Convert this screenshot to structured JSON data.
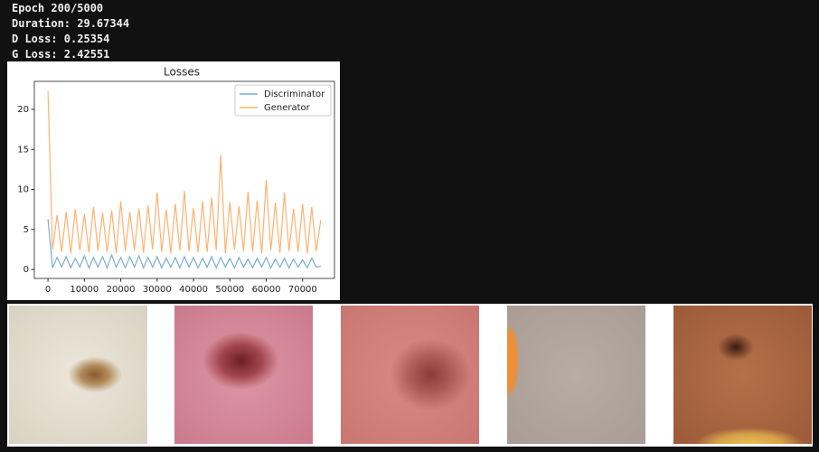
{
  "log_lines": [
    "Epoch 200/5000",
    "Duration: 29.67344",
    "D Loss: 0.25354",
    "G Loss: 2.42551"
  ],
  "chart_data": {
    "type": "line",
    "title": "Losses",
    "legend": "upper right",
    "x": [
      0,
      1250,
      2500,
      3750,
      5000,
      6250,
      7500,
      8750,
      10000,
      11250,
      12500,
      13750,
      15000,
      16250,
      17500,
      18750,
      20000,
      21250,
      22500,
      23750,
      25000,
      26250,
      27500,
      28750,
      30000,
      31250,
      32500,
      33750,
      35000,
      36250,
      37500,
      38750,
      40000,
      41250,
      42500,
      43750,
      45000,
      46250,
      47500,
      48750,
      50000,
      51250,
      52500,
      53750,
      55000,
      56250,
      57500,
      58750,
      60000,
      61250,
      62500,
      63750,
      65000,
      66250,
      67500,
      68750,
      70000,
      71250,
      72500,
      73750,
      75000
    ],
    "series": [
      {
        "name": "Discriminator",
        "color": "#1f77b4",
        "values": [
          6.3,
          0.2,
          1.5,
          0.3,
          1.6,
          0.2,
          1.4,
          0.3,
          1.7,
          0.2,
          1.5,
          0.3,
          1.6,
          0.2,
          1.8,
          0.3,
          1.5,
          0.2,
          1.6,
          0.3,
          1.7,
          0.2,
          1.5,
          0.3,
          1.6,
          0.2,
          1.4,
          0.3,
          1.5,
          0.2,
          1.6,
          0.3,
          1.5,
          0.2,
          1.4,
          0.3,
          1.6,
          0.2,
          1.5,
          0.3,
          1.4,
          0.2,
          1.5,
          0.3,
          1.3,
          0.2,
          1.4,
          0.3,
          1.5,
          0.2,
          1.3,
          0.3,
          1.4,
          0.2,
          1.3,
          0.3,
          1.2,
          0.2,
          1.4,
          0.3,
          0.4
        ]
      },
      {
        "name": "Generator",
        "color": "#ff7f0e",
        "values": [
          22.3,
          2.5,
          6.8,
          2.2,
          7.2,
          2.0,
          7.5,
          2.4,
          6.9,
          2.1,
          7.8,
          2.3,
          7.1,
          2.2,
          7.4,
          2.0,
          8.5,
          2.3,
          7.2,
          2.4,
          7.6,
          2.1,
          8.0,
          2.5,
          9.6,
          2.2,
          7.5,
          2.0,
          8.2,
          2.4,
          9.8,
          2.3,
          7.7,
          2.1,
          8.5,
          2.2,
          9.0,
          2.4,
          14.3,
          2.0,
          8.4,
          2.5,
          7.9,
          2.3,
          9.7,
          2.2,
          8.6,
          2.0,
          11.2,
          2.4,
          8.3,
          2.1,
          9.6,
          2.3,
          7.6,
          2.2,
          8.2,
          2.0,
          7.8,
          2.3,
          6.2
        ]
      }
    ],
    "xlim": [
      -3750,
      78750
    ],
    "xticks": [
      0,
      10000,
      20000,
      30000,
      40000,
      50000,
      60000,
      70000
    ],
    "ylim": [
      -1.12,
      23.5
    ],
    "yticks": [
      0,
      5,
      10,
      15,
      20
    ]
  }
}
